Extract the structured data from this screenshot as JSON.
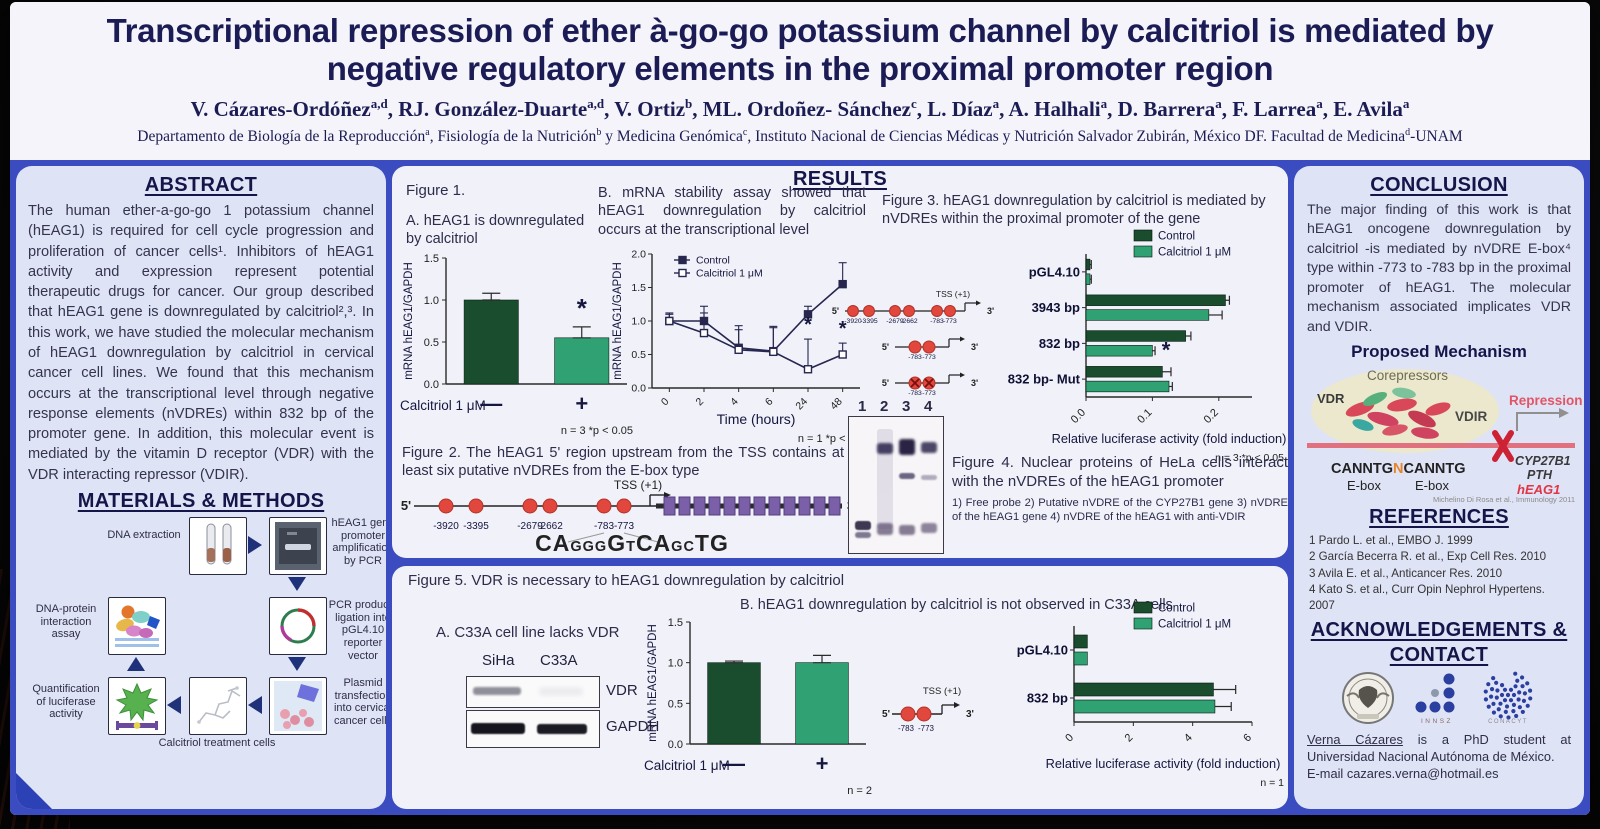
{
  "poster": {
    "title_line1": "Transcriptional repression  of ether à-go-go potassium channel by calcitriol is mediated by",
    "title_line2": "negative regulatory elements in the proximal promoter region",
    "authors": [
      {
        "name": "V. Cázares-Ordóñez",
        "sup": "a,d"
      },
      {
        "name": "RJ. González-Duarte",
        "sup": "a,d"
      },
      {
        "name": "V. Ortiz",
        "sup": "b"
      },
      {
        "name": "ML. Ordoñez- Sánchez",
        "sup": "c"
      },
      {
        "name": "L. Díaz",
        "sup": "a"
      },
      {
        "name": "A. Halhali",
        "sup": "a"
      },
      {
        "name": "D. Barrera",
        "sup": "a"
      },
      {
        "name": "F. Larrea",
        "sup": "a"
      },
      {
        "name": "E. Avila",
        "sup": "a"
      }
    ],
    "affiliation": [
      {
        "t": "Departamento de Biología de la Reproducción"
      },
      {
        "t": "a",
        "sup": true
      },
      {
        "t": ", Fisiología de la Nutrición"
      },
      {
        "t": "b",
        "sup": true
      },
      {
        "t": " y Medicina Genómica"
      },
      {
        "t": "c",
        "sup": true
      },
      {
        "t": ", Instituto Nacional de Ciencias Médicas y Nutrición Salvador Zubirán, México DF. Facultad de Medicina"
      },
      {
        "t": "d",
        "sup": true
      },
      {
        "t": "-UNAM"
      }
    ]
  },
  "abstract": {
    "heading": "ABSTRACT",
    "text": "The human ether-a-go-go 1 potassium channel (hEAG1) is required for cell cycle progression and proliferation of cancer cells¹. Inhibitors of hEAG1 activity and expression represent potential therapeutic drugs for cancer. Our group described that hEAG1 gene is downregulated by calcitriol²,³. In this work, we have studied the molecular mechanism of hEAG1 downregulation by calcitriol in cervical cancer cell lines. We found that this mechanism occurs at the transcriptional level through negative response elements (nVDREs) within 832 bp of the promoter gene. In addition, this molecular event is mediated by the vitamin D receptor (VDR) with the VDR interacting repressor (VDIR)."
  },
  "methods": {
    "heading": "MATERIALS & METHODS",
    "steps": {
      "dna_extraction": "DNA extraction",
      "pcr": "hEAG1 gene promoter amplification by PCR",
      "ligation": "PCR products ligation into pGL4.10 reporter vector",
      "transfection": "Plasmid transfection into cervical cancer cells",
      "calcitriol": "Calcitriol treatment cells",
      "luciferase": "Quantification of luciferase activity",
      "interaction": "DNA-protein interaction assay"
    }
  },
  "results": {
    "heading": "RESULTS",
    "fig1": {
      "label": "Figure 1.",
      "a_caption": "A. hEAG1 is downregulated by calcitriol",
      "b_caption": "B. mRNA stability assay showed that hEAG1 downregulation by calcitriol occurs at the transcriptional level"
    },
    "fig2": {
      "caption": "Figure 2. The hEAG1 5' region upstream from the TSS contains at least six putative nVDREs from the E-box type",
      "tss_label": "TSS (+1)",
      "five": "5'",
      "three": "3'",
      "circles_x": [
        46,
        76,
        130,
        150,
        204,
        224
      ],
      "positions": [
        "-3920",
        "-3395",
        "-2679",
        "-2662",
        "-783",
        "-773"
      ],
      "ebox_segments": [
        {
          "t": "CA",
          "small": false
        },
        {
          "t": "GGG",
          "small": true
        },
        {
          "t": "G",
          "small": false
        },
        {
          "t": "T",
          "small": true
        },
        {
          "t": "CA",
          "small": false
        },
        {
          "t": "GC",
          "small": true
        },
        {
          "t": "TG",
          "small": false
        }
      ]
    },
    "fig3": {
      "caption": "Figure 3. hEAG1 downregulation by calcitriol is mediated by nVDREs within the proximal promoter of the gene",
      "gel_lanes": [
        "1",
        "2",
        "3",
        "4"
      ],
      "tss_label": "TSS (+1)",
      "constructs": [
        {
          "circles": 6,
          "positions": [
            "-3920",
            "-3395",
            "-2679",
            "-2662",
            "-783",
            "-773"
          ],
          "mut": false
        },
        {
          "circles": 2,
          "positions": [
            "-783",
            "-773"
          ],
          "mut": false
        },
        {
          "circles": 2,
          "positions": [
            "-783",
            "-773"
          ],
          "mut": true
        }
      ]
    },
    "fig4": {
      "caption": "Figure 4. Nuclear proteins of HeLa cells interact with the nVDREs of the hEAG1 promoter",
      "legend": "1) Free probe 2) Putative nVDRE of the CYP27B1 gene 3) nVDRE of the hEAG1 gene 4) nVDRE of the hEAG1 with anti-VDIR"
    },
    "fig5": {
      "caption": "Figure 5. VDR is necessary to hEAG1 downregulation by calcitriol",
      "a_caption": "A. C33A cell line lacks VDR",
      "b_caption": "B. hEAG1 downregulation by calcitriol is not observed in C33A cells",
      "blot_col1": "SiHa",
      "blot_col2": "C33A",
      "blot_row1": "VDR",
      "blot_row2": "GAPDH",
      "tss_label": "TSS (+1)",
      "construct_positions": [
        "-783",
        "-773"
      ]
    }
  },
  "chart_data": {
    "fig1a": {
      "type": "bar",
      "ylabel": "mRNA hEAG1/GAPDH",
      "ylim": [
        0,
        1.5
      ],
      "yticks": [
        0.0,
        0.5,
        1.0,
        1.5
      ],
      "categories": [
        "—",
        "+"
      ],
      "values": [
        1.0,
        0.55
      ],
      "errors": [
        0.08,
        0.13
      ],
      "bar_colors": [
        "#1a4d2e",
        "#2fa173"
      ],
      "stars": [
        1
      ],
      "x_axis_title": "Calcitriol 1 μM",
      "note": "n = 3 *p < 0.05"
    },
    "fig1b": {
      "type": "line",
      "ylabel": "mRNA hEAG1/GAPDH",
      "xlabel": "Time (hours)",
      "ylim": [
        0,
        2.0
      ],
      "yticks": [
        0.0,
        0.5,
        1.0,
        1.5,
        2.0
      ],
      "x": [
        "0",
        "2",
        "4",
        "6",
        "24",
        "48"
      ],
      "series": [
        {
          "name": "Control",
          "marker": "filled",
          "values": [
            1.0,
            1.0,
            0.6,
            0.55,
            1.1,
            1.55
          ],
          "errors": [
            0.12,
            0.22,
            0.33,
            0.35,
            0.12,
            0.32
          ],
          "stars": []
        },
        {
          "name": "Calcitriol 1 μM",
          "marker": "open",
          "values": [
            1.0,
            0.82,
            0.57,
            0.54,
            0.28,
            0.5
          ],
          "errors": [
            0.1,
            0.3,
            0.3,
            0.38,
            0.45,
            0.17
          ],
          "stars": [
            4,
            5
          ]
        }
      ],
      "note": "n = 1 *p < 0.05"
    },
    "fig3": {
      "type": "hbar",
      "xlabel": "Relative luciferase activity (fold induction)",
      "xlim": [
        0,
        0.25
      ],
      "xticks": [
        0.0,
        0.1,
        0.2
      ],
      "tick_decimals": 1,
      "categories": [
        "pGL4.10",
        "3943 bp",
        "832 bp",
        "832 bp- Mut"
      ],
      "series": [
        {
          "name": "Control",
          "color": "#1a4d2e",
          "values": [
            0.006,
            0.21,
            0.15,
            0.115
          ],
          "errors": [
            0.002,
            0.006,
            0.008,
            0.013
          ],
          "stars": []
        },
        {
          "name": "Calcitriol 1 μM",
          "color": "#2fa173",
          "values": [
            0.006,
            0.185,
            0.1,
            0.125
          ],
          "errors": [
            0.002,
            0.02,
            0.004,
            0.005
          ],
          "stars": [
            2
          ]
        }
      ],
      "note": "n = 3 *p < 0.05"
    },
    "fig5b": {
      "type": "bar",
      "ylabel": "mRNA hEAG1/GAPDH",
      "ylim": [
        0,
        1.5
      ],
      "yticks": [
        0.0,
        0.5,
        1.0,
        1.5
      ],
      "categories": [
        "—",
        "+"
      ],
      "values": [
        1.0,
        1.0
      ],
      "errors": [
        0.02,
        0.09
      ],
      "bar_colors": [
        "#1a4d2e",
        "#2fa173"
      ],
      "stars": [],
      "x_axis_title": "Calcitriol 1 μM",
      "note": "n = 2"
    },
    "fig5c": {
      "type": "hbar",
      "xlabel": "Relative luciferase activity (fold induction)",
      "xlim": [
        0,
        6
      ],
      "xticks": [
        0,
        2,
        4,
        6
      ],
      "tick_decimals": 0,
      "categories": [
        "pGL4.10",
        "832 bp"
      ],
      "series": [
        {
          "name": "Control",
          "color": "#1a4d2e",
          "values": [
            0.45,
            4.7
          ],
          "errors": [
            0,
            0.75
          ],
          "stars": []
        },
        {
          "name": "Calcitriol 1 μM",
          "color": "#2fa173",
          "values": [
            0.45,
            4.75
          ],
          "errors": [
            0,
            0.55
          ],
          "stars": []
        }
      ],
      "note": "n = 1"
    }
  },
  "conclusion": {
    "heading": "CONCLUSION",
    "text": "The major finding of this work is that hEAG1 oncogene downregulation by calcitriol -is mediated by nVDRE E-box⁴ type within -773 to -783 bp in the proximal promoter of hEAG1. The molecular mechanism associated implicates VDR and VDIR."
  },
  "mechanism": {
    "heading": "Proposed Mechanism",
    "corepressors": "Corepressors",
    "vdr": "VDR",
    "vdir": "VDIR",
    "repression": "Repression",
    "seq_left": "CANNTG",
    "seq_mid": "N",
    "seq_right": "CANNTG",
    "ebox1": "E-box",
    "ebox2": "E-box",
    "gene1": "CYP27B1",
    "gene2": "PTH",
    "gene_red": "hEAG1",
    "citation": "Michelino Di Rosa et al., Immunology 2011"
  },
  "references": {
    "heading": "REFERENCES",
    "items": [
      "1 Pardo L. et al., EMBO J. 1999",
      "2 García Becerra R. et al., Exp Cell Res. 2010",
      "3 Avila E. et al., Anticancer Res. 2010",
      "4 Kato S. et al., Curr Opin Nephrol Hypertens. 2007"
    ]
  },
  "acknowledgements": {
    "heading_line1": "ACKNOWLEDGEMENTS &",
    "heading_line2": "CONTACT",
    "logo_innsz": "INNSZ",
    "logo_conacyt": "CONACYT",
    "contact_name": "Verna Cázares",
    "contact_rest": " is a PhD student at Universidad Nacional Autónoma de México.",
    "contact_email": "E-mail cazares.verna@hotmail.es"
  },
  "colors": {
    "dark_green": "#1a4d2e",
    "light_green": "#2fa173",
    "blue_bg": "#3a4cbf",
    "navy": "#1b1b55",
    "nvdre_red": "#e2473d",
    "exon_purple": "#7b5fa8"
  }
}
